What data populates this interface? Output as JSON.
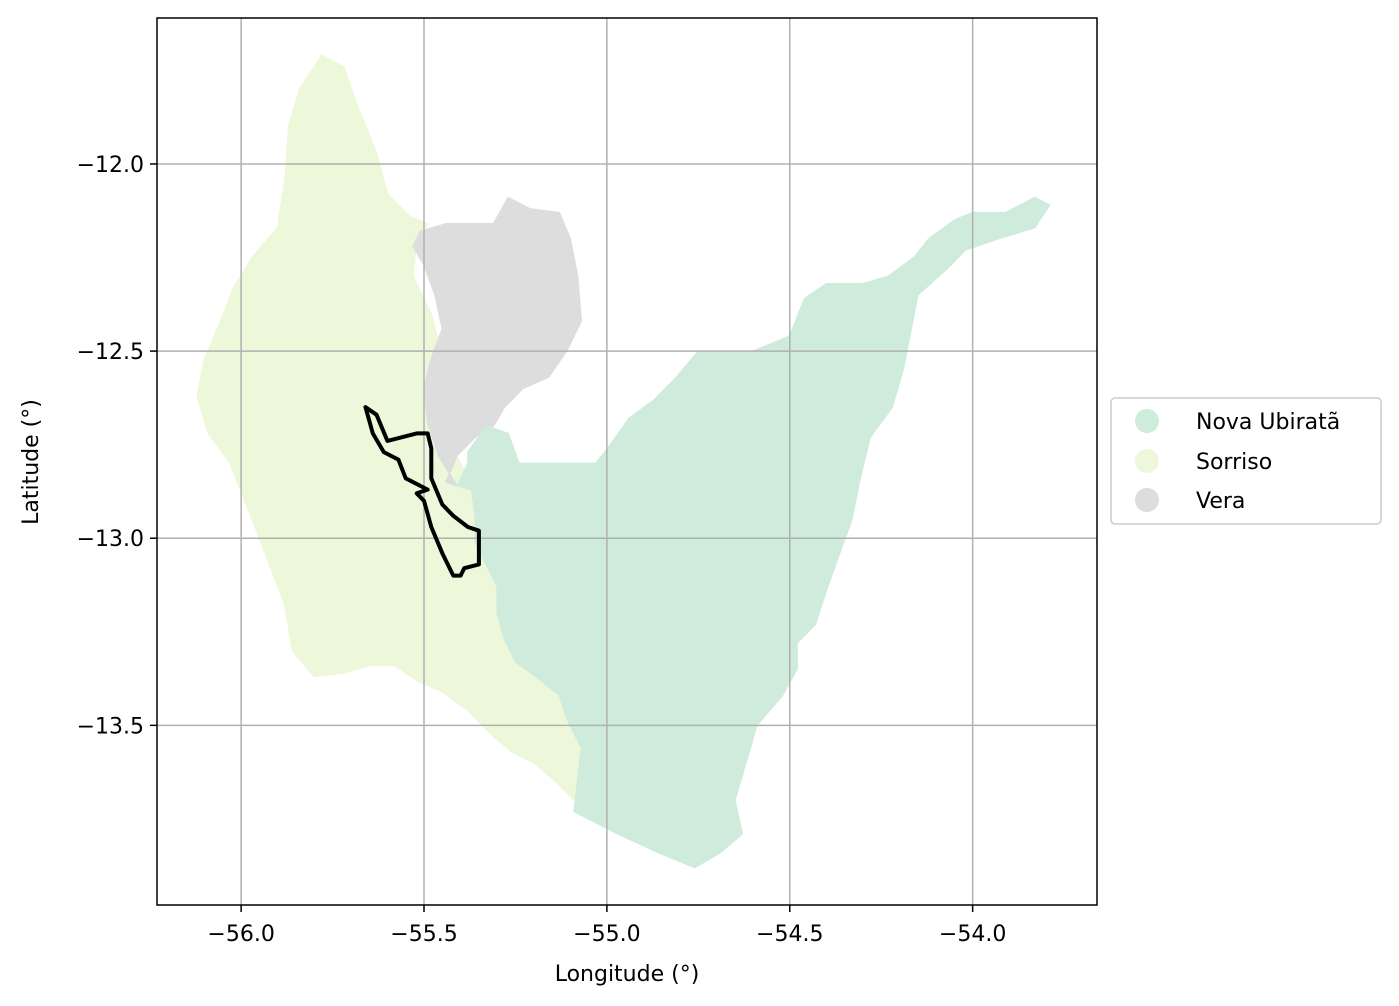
{
  "chart_data": {
    "type": "map",
    "xlabel": "Longitude (°)",
    "ylabel": "Latitude (°)",
    "xlim": [
      -56.23,
      -53.66
    ],
    "ylim": [
      -13.98,
      -11.61
    ],
    "xticks": [
      -56.0,
      -55.5,
      -55.0,
      -54.5,
      -54.0
    ],
    "xtick_labels": [
      "−56.0",
      "−55.5",
      "−55.0",
      "−54.5",
      "−54.0"
    ],
    "yticks": [
      -12.0,
      -12.5,
      -13.0,
      -13.5
    ],
    "ytick_labels": [
      "−12.0",
      "−12.5",
      "−13.0",
      "−13.5"
    ],
    "grid": true,
    "legend": {
      "placement": "outside-right",
      "entries": [
        {
          "name": "Nova Ubiratã",
          "color": "#cfebdc"
        },
        {
          "name": "Sorriso",
          "color": "#edf8da"
        },
        {
          "name": "Vera",
          "color": "#dddddd"
        }
      ]
    },
    "regions": [
      {
        "name": "Sorriso",
        "color": "#edf8da",
        "coords": [
          [
            -55.78,
            -11.71
          ],
          [
            -55.72,
            -11.74
          ],
          [
            -55.68,
            -11.85
          ],
          [
            -55.63,
            -11.97
          ],
          [
            -55.6,
            -12.08
          ],
          [
            -55.54,
            -12.14
          ],
          [
            -55.49,
            -12.16
          ],
          [
            -55.52,
            -12.2
          ],
          [
            -55.53,
            -12.3
          ],
          [
            -55.48,
            -12.4
          ],
          [
            -55.46,
            -12.48
          ],
          [
            -55.48,
            -12.56
          ],
          [
            -55.47,
            -12.65
          ],
          [
            -55.44,
            -12.73
          ],
          [
            -55.4,
            -12.8
          ],
          [
            -55.37,
            -12.87
          ],
          [
            -55.36,
            -12.94
          ],
          [
            -55.36,
            -13.01
          ],
          [
            -55.33,
            -13.07
          ],
          [
            -55.3,
            -13.13
          ],
          [
            -55.3,
            -13.2
          ],
          [
            -55.28,
            -13.27
          ],
          [
            -55.25,
            -13.33
          ],
          [
            -55.18,
            -13.38
          ],
          [
            -55.13,
            -13.42
          ],
          [
            -55.11,
            -13.48
          ],
          [
            -55.07,
            -13.56
          ],
          [
            -55.08,
            -13.64
          ],
          [
            -55.09,
            -13.7
          ],
          [
            -55.14,
            -13.65
          ],
          [
            -55.2,
            -13.6
          ],
          [
            -55.26,
            -13.57
          ],
          [
            -55.31,
            -13.53
          ],
          [
            -55.38,
            -13.46
          ],
          [
            -55.45,
            -13.41
          ],
          [
            -55.52,
            -13.38
          ],
          [
            -55.58,
            -13.34
          ],
          [
            -55.65,
            -13.34
          ],
          [
            -55.72,
            -13.36
          ],
          [
            -55.8,
            -13.37
          ],
          [
            -55.86,
            -13.3
          ],
          [
            -55.88,
            -13.18
          ],
          [
            -55.93,
            -13.05
          ],
          [
            -55.99,
            -12.9
          ],
          [
            -56.03,
            -12.8
          ],
          [
            -56.09,
            -12.72
          ],
          [
            -56.12,
            -12.62
          ],
          [
            -56.1,
            -12.52
          ],
          [
            -56.06,
            -12.43
          ],
          [
            -56.02,
            -12.33
          ],
          [
            -55.97,
            -12.25
          ],
          [
            -55.9,
            -12.17
          ],
          [
            -55.88,
            -12.04
          ],
          [
            -55.87,
            -11.9
          ],
          [
            -55.84,
            -11.8
          ]
        ]
      },
      {
        "name": "Vera",
        "color": "#dddddd",
        "coords": [
          [
            -55.51,
            -12.18
          ],
          [
            -55.44,
            -12.16
          ],
          [
            -55.38,
            -12.16
          ],
          [
            -55.31,
            -12.16
          ],
          [
            -55.27,
            -12.09
          ],
          [
            -55.21,
            -12.12
          ],
          [
            -55.13,
            -12.13
          ],
          [
            -55.1,
            -12.2
          ],
          [
            -55.08,
            -12.3
          ],
          [
            -55.07,
            -12.42
          ],
          [
            -55.11,
            -12.5
          ],
          [
            -55.16,
            -12.57
          ],
          [
            -55.23,
            -12.6
          ],
          [
            -55.28,
            -12.65
          ],
          [
            -55.31,
            -12.7
          ],
          [
            -55.36,
            -12.73
          ],
          [
            -55.41,
            -12.78
          ],
          [
            -55.44,
            -12.85
          ],
          [
            -55.41,
            -12.86
          ],
          [
            -55.46,
            -12.78
          ],
          [
            -55.49,
            -12.69
          ],
          [
            -55.5,
            -12.6
          ],
          [
            -55.48,
            -12.52
          ],
          [
            -55.45,
            -12.44
          ],
          [
            -55.47,
            -12.35
          ],
          [
            -55.5,
            -12.27
          ],
          [
            -55.53,
            -12.22
          ]
        ]
      },
      {
        "name": "Nova Ubiratã",
        "color": "#cfebdc",
        "coords": [
          [
            -55.38,
            -12.77
          ],
          [
            -55.33,
            -12.7
          ],
          [
            -55.27,
            -12.72
          ],
          [
            -55.24,
            -12.8
          ],
          [
            -55.12,
            -12.8
          ],
          [
            -55.03,
            -12.8
          ],
          [
            -54.99,
            -12.75
          ],
          [
            -54.94,
            -12.68
          ],
          [
            -54.87,
            -12.63
          ],
          [
            -54.81,
            -12.57
          ],
          [
            -54.75,
            -12.5
          ],
          [
            -54.6,
            -12.5
          ],
          [
            -54.5,
            -12.46
          ],
          [
            -54.46,
            -12.36
          ],
          [
            -54.4,
            -12.32
          ],
          [
            -54.3,
            -12.32
          ],
          [
            -54.23,
            -12.3
          ],
          [
            -54.16,
            -12.25
          ],
          [
            -54.12,
            -12.2
          ],
          [
            -54.05,
            -12.15
          ],
          [
            -54.0,
            -12.13
          ],
          [
            -53.91,
            -12.13
          ],
          [
            -53.83,
            -12.09
          ],
          [
            -53.79,
            -12.11
          ],
          [
            -53.83,
            -12.17
          ],
          [
            -53.93,
            -12.2
          ],
          [
            -54.02,
            -12.23
          ],
          [
            -54.07,
            -12.28
          ],
          [
            -54.15,
            -12.35
          ],
          [
            -54.17,
            -12.45
          ],
          [
            -54.19,
            -12.55
          ],
          [
            -54.22,
            -12.65
          ],
          [
            -54.28,
            -12.73
          ],
          [
            -54.31,
            -12.85
          ],
          [
            -54.33,
            -12.95
          ],
          [
            -54.36,
            -13.03
          ],
          [
            -54.4,
            -13.14
          ],
          [
            -54.43,
            -13.23
          ],
          [
            -54.48,
            -13.28
          ],
          [
            -54.48,
            -13.35
          ],
          [
            -54.52,
            -13.42
          ],
          [
            -54.59,
            -13.5
          ],
          [
            -54.62,
            -13.6
          ],
          [
            -54.65,
            -13.7
          ],
          [
            -54.63,
            -13.79
          ],
          [
            -54.69,
            -13.84
          ],
          [
            -54.76,
            -13.88
          ],
          [
            -54.86,
            -13.84
          ],
          [
            -54.97,
            -13.79
          ],
          [
            -55.09,
            -13.73
          ],
          [
            -55.07,
            -13.56
          ],
          [
            -55.11,
            -13.48
          ],
          [
            -55.13,
            -13.42
          ],
          [
            -55.18,
            -13.38
          ],
          [
            -55.25,
            -13.33
          ],
          [
            -55.28,
            -13.27
          ],
          [
            -55.3,
            -13.2
          ],
          [
            -55.3,
            -13.13
          ],
          [
            -55.33,
            -13.07
          ],
          [
            -55.36,
            -13.01
          ],
          [
            -55.36,
            -12.94
          ],
          [
            -55.37,
            -12.87
          ],
          [
            -55.41,
            -12.86
          ],
          [
            -55.38,
            -12.8
          ]
        ]
      }
    ],
    "outline": {
      "color": "#000000",
      "coords": [
        [
          -55.66,
          -12.65
        ],
        [
          -55.63,
          -12.67
        ],
        [
          -55.6,
          -12.74
        ],
        [
          -55.52,
          -12.72
        ],
        [
          -55.49,
          -12.72
        ],
        [
          -55.48,
          -12.76
        ],
        [
          -55.48,
          -12.84
        ],
        [
          -55.45,
          -12.91
        ],
        [
          -55.42,
          -12.94
        ],
        [
          -55.38,
          -12.97
        ],
        [
          -55.35,
          -12.98
        ],
        [
          -55.35,
          -13.07
        ],
        [
          -55.39,
          -13.08
        ],
        [
          -55.4,
          -13.1
        ],
        [
          -55.42,
          -13.1
        ],
        [
          -55.45,
          -13.04
        ],
        [
          -55.48,
          -12.97
        ],
        [
          -55.5,
          -12.9
        ],
        [
          -55.52,
          -12.88
        ],
        [
          -55.49,
          -12.87
        ],
        [
          -55.55,
          -12.84
        ],
        [
          -55.57,
          -12.79
        ],
        [
          -55.61,
          -12.77
        ],
        [
          -55.64,
          -12.72
        ],
        [
          -55.66,
          -12.65
        ]
      ]
    }
  }
}
